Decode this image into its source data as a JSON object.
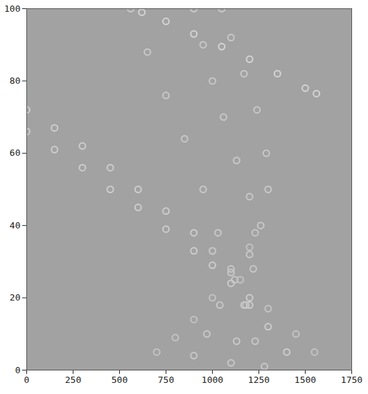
{
  "chart_data": {
    "type": "scatter",
    "marker": "circle",
    "grid": false,
    "xlim": [
      0,
      1750
    ],
    "xticks": [
      0,
      250,
      500,
      750,
      1000,
      1250,
      1500,
      1750
    ],
    "ylim": [
      0,
      100
    ],
    "yticks": [
      0,
      20,
      40,
      60,
      80,
      100
    ],
    "series": [
      {
        "color": "#d4d4d4",
        "x": [
          620,
          750,
          900,
          1050,
          1200,
          1350,
          1500,
          1560
        ],
        "values": [
          99,
          96.5,
          93,
          89.5,
          86,
          82,
          78,
          76.5
        ]
      },
      {
        "color": "#cdcdcd",
        "x": [
          0,
          150,
          300,
          450,
          600,
          750,
          900,
          1000,
          1100,
          1200,
          1300,
          1400
        ],
        "values": [
          72,
          67,
          62,
          56,
          50,
          44,
          38,
          33,
          27,
          20,
          12,
          5
        ]
      },
      {
        "color": "#cdcdcd",
        "x": [
          0,
          150,
          300,
          450,
          600,
          750,
          900,
          1000,
          1100,
          1200
        ],
        "values": [
          66,
          61,
          56,
          50,
          45,
          39,
          33,
          29,
          24,
          18
        ]
      },
      {
        "color": "#c8c8c8",
        "x": [
          560,
          650,
          750,
          850,
          950,
          1030,
          1100,
          1170,
          1230,
          1280
        ],
        "values": [
          100,
          88,
          76,
          64,
          50,
          38,
          28,
          18,
          8,
          1
        ]
      },
      {
        "color": "#c8c8c8",
        "x": [
          900,
          950,
          1000,
          1060,
          1130,
          1200,
          1230,
          1220,
          1180,
          1130,
          1100
        ],
        "values": [
          100,
          90,
          80,
          70,
          58,
          48,
          38,
          28,
          18,
          8,
          2
        ]
      },
      {
        "color": "#c8c8c8",
        "x": [
          1050,
          1100,
          1170,
          1240,
          1290,
          1300,
          1260,
          1200,
          1120,
          1040,
          970,
          900
        ],
        "values": [
          100,
          92,
          82,
          72,
          60,
          50,
          40,
          32,
          25,
          18,
          10,
          4
        ]
      },
      {
        "color": "#c3c3c3",
        "x": [
          700,
          800,
          900,
          1000,
          1100,
          1200
        ],
        "values": [
          5,
          9,
          14,
          20,
          27,
          34
        ]
      },
      {
        "color": "#c3c3c3",
        "x": [
          1000,
          1150,
          1300,
          1450,
          1550
        ],
        "values": [
          33,
          25,
          17,
          10,
          5
        ]
      }
    ]
  }
}
